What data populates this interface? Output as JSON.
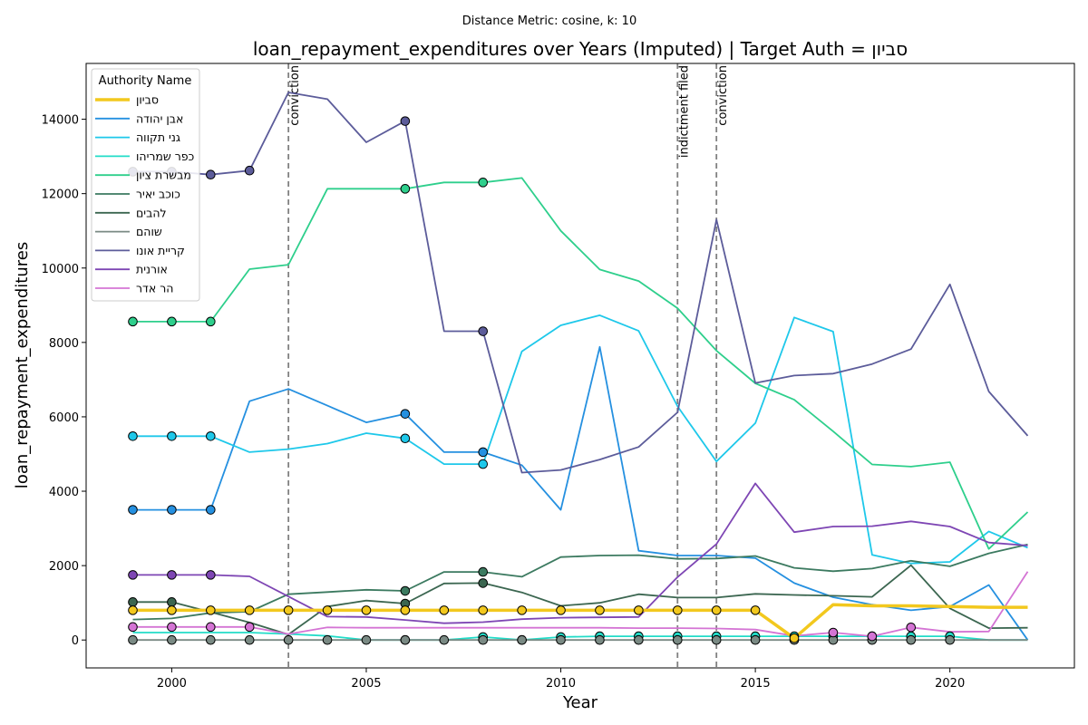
{
  "chart_data": {
    "type": "line",
    "suptitle": "Distance Metric: cosine, k: 10",
    "title": "loan_repayment_expenditures over Years (Imputed) | Target Auth = סביון",
    "xlabel": "Year",
    "ylabel": "loan_repayment_expenditures",
    "xlim": [
      1997.8,
      2023.2
    ],
    "ylim": [
      -750,
      15500
    ],
    "x_ticks": [
      2000,
      2005,
      2010,
      2015,
      2020
    ],
    "y_ticks": [
      0,
      2000,
      4000,
      6000,
      8000,
      10000,
      12000,
      14000
    ],
    "grid": false,
    "legend": {
      "title": "Authority Name",
      "placement": "top-left"
    },
    "events": [
      {
        "x": 2003,
        "label": "conviction"
      },
      {
        "x": 2013,
        "label": "indictment filed"
      },
      {
        "x": 2014,
        "label": "conviction"
      }
    ],
    "x": [
      1999,
      2000,
      2001,
      2002,
      2003,
      2004,
      2005,
      2006,
      2007,
      2008,
      2009,
      2010,
      2011,
      2012,
      2013,
      2014,
      2015,
      2016,
      2017,
      2018,
      2019,
      2020,
      2021,
      2022
    ],
    "series": [
      {
        "name": "סביון",
        "color": "#f2c81e",
        "target": true,
        "values": [
          800,
          800,
          800,
          800,
          800,
          800,
          800,
          800,
          800,
          800,
          800,
          800,
          800,
          800,
          800,
          800,
          800,
          50,
          950,
          920,
          920,
          900,
          880,
          880
        ],
        "imputed_years": [
          1999,
          2000,
          2001,
          2002,
          2003,
          2004,
          2005,
          2006,
          2007,
          2008,
          2009,
          2010,
          2011,
          2012,
          2013,
          2014,
          2015,
          2016
        ]
      },
      {
        "name": "אבן יהודה",
        "color": "#2590e0",
        "values": [
          3500,
          3500,
          3500,
          6420,
          6750,
          6300,
          5850,
          6080,
          5050,
          5050,
          4700,
          3500,
          7880,
          2400,
          2270,
          2270,
          2200,
          1530,
          1150,
          950,
          800,
          900,
          1480,
          0
        ],
        "imputed_years": [
          1999,
          2000,
          2001,
          2006,
          2008
        ]
      },
      {
        "name": "גני תקווה",
        "color": "#1ec8ea",
        "values": [
          5480,
          5480,
          5480,
          5050,
          5130,
          5280,
          5560,
          5420,
          4730,
          4730,
          7760,
          8460,
          8730,
          8310,
          6280,
          4800,
          5830,
          8670,
          8290,
          2290,
          2060,
          2100,
          2920,
          2480
        ],
        "imputed_years": [
          1999,
          2000,
          2001,
          2006,
          2008
        ]
      },
      {
        "name": "כפר שמריהו",
        "color": "#22dcc8",
        "values": [
          200,
          200,
          200,
          200,
          160,
          110,
          0,
          0,
          0,
          80,
          0,
          80,
          100,
          100,
          100,
          100,
          100,
          100,
          100,
          100,
          100,
          100,
          0,
          0
        ],
        "imputed_years": [
          2006,
          2008,
          2009,
          2010,
          2011,
          2012,
          2013,
          2014,
          2015,
          2016,
          2017,
          2018,
          2019,
          2020
        ]
      },
      {
        "name": "מבשרת ציון",
        "color": "#2ecf8c",
        "values": [
          8560,
          8560,
          8560,
          9970,
          10090,
          12130,
          12130,
          12130,
          12300,
          12300,
          12420,
          11000,
          9960,
          9650,
          8920,
          7780,
          6900,
          6460,
          5610,
          4720,
          4660,
          4780,
          2450,
          3440
        ],
        "imputed_years": [
          1999,
          2000,
          2001,
          2006,
          2008
        ]
      },
      {
        "name": "כוכב יאיר",
        "color": "#3c7a60",
        "values": [
          550,
          580,
          730,
          760,
          1230,
          1290,
          1350,
          1320,
          1830,
          1830,
          1700,
          2230,
          2270,
          2280,
          2180,
          2190,
          2260,
          1940,
          1850,
          1920,
          2130,
          1980,
          2330,
          2570
        ],
        "imputed_years": [
          2006,
          2008
        ]
      },
      {
        "name": "להבים",
        "color": "#3b6650",
        "values": [
          1020,
          1020,
          750,
          470,
          150,
          900,
          1060,
          980,
          1520,
          1530,
          1280,
          920,
          1000,
          1230,
          1140,
          1140,
          1240,
          1210,
          1190,
          1160,
          2010,
          850,
          320,
          330
        ],
        "imputed_years": [
          1999,
          2000,
          2006,
          2008
        ]
      },
      {
        "name": "שוהם",
        "color": "#7a8a84",
        "values": [
          0,
          0,
          0,
          0,
          0,
          0,
          0,
          0,
          0,
          0,
          0,
          0,
          0,
          0,
          0,
          0,
          0,
          0,
          0,
          0,
          0,
          0,
          0,
          0
        ],
        "imputed_years": [
          1999,
          2000,
          2001,
          2002,
          2003,
          2004,
          2005,
          2006,
          2007,
          2008,
          2009,
          2010,
          2011,
          2012,
          2013,
          2014,
          2015,
          2016,
          2017,
          2018,
          2019,
          2020
        ]
      },
      {
        "name": "קריית אונו",
        "color": "#5c5c9a",
        "values": [
          12590,
          12590,
          12510,
          12620,
          14720,
          14540,
          13380,
          13950,
          8300,
          8300,
          4500,
          4570,
          4850,
          5190,
          6120,
          11300,
          6910,
          7110,
          7160,
          7420,
          7820,
          9560,
          6680,
          5490
        ],
        "imputed_years": [
          1999,
          2000,
          2001,
          2002,
          2006,
          2008
        ]
      },
      {
        "name": "אורנית",
        "color": "#7e46b4",
        "values": [
          1750,
          1750,
          1750,
          1710,
          1170,
          630,
          620,
          540,
          450,
          480,
          560,
          600,
          610,
          620,
          1690,
          2580,
          4210,
          2900,
          3050,
          3060,
          3190,
          3050,
          2620,
          2540
        ],
        "imputed_years": [
          1999,
          2000,
          2001
        ]
      },
      {
        "name": "הר אדר",
        "color": "#d474d4",
        "values": [
          350,
          350,
          350,
          350,
          160,
          340,
          330,
          330,
          330,
          330,
          330,
          330,
          330,
          320,
          320,
          310,
          280,
          110,
          200,
          100,
          340,
          220,
          230,
          1840
        ],
        "imputed_years": [
          1999,
          2000,
          2001,
          2002,
          2017,
          2018,
          2019
        ]
      }
    ]
  }
}
